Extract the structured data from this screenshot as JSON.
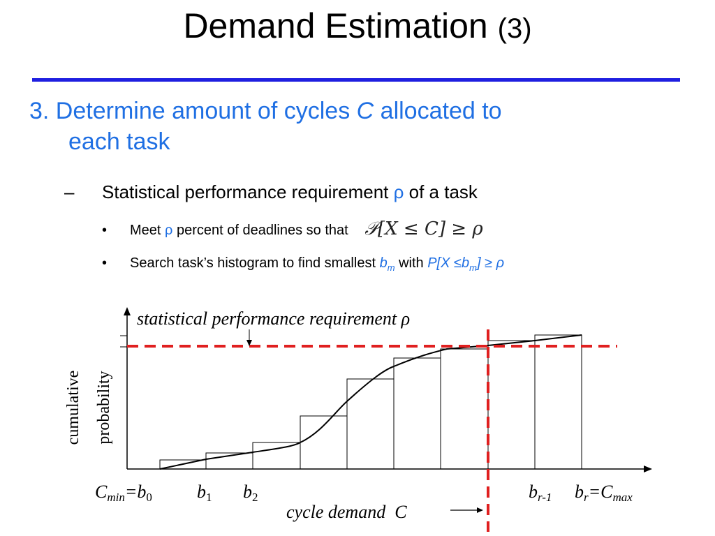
{
  "slide": {
    "title": "Demand Estimation",
    "title_suffix": "(3)",
    "heading_prefix": "3. Determine amount of cycles ",
    "heading_var": "C",
    "heading_rest": " allocated to",
    "heading_line2": "each task",
    "dash": "–",
    "sub_text": "Statistical performance requirement ",
    "sub_rho": "ρ",
    "sub_end": " of a task",
    "bullet_symbol": "•",
    "b1_pre": "Meet ",
    "b1_rho": "ρ",
    "b1_post": " percent of deadlines so that",
    "b1_formula": "𝒫[X ≤ C] ≥ ρ",
    "b2_pre": "Search task’s histogram to find smallest ",
    "b2_b": "b",
    "b2_m": "m",
    "b2_with": " with ",
    "b2_formula_pre": "P[X ≤b",
    "b2_formula_sub": "m",
    "b2_formula_post": "] ≥ ρ"
  },
  "diagram": {
    "requirement_label": "statistical performance requirement ρ",
    "ylabel_line1": "cumulative",
    "ylabel_line2": "probability",
    "xlabel": "cycle demand  C",
    "tick_cmin": "C",
    "tick_cmin_sub": "min",
    "tick_b0_eq": "=b",
    "tick_b0_sub": "0",
    "tick_b1": "b",
    "tick_b1_sub": "1",
    "tick_b2": "b",
    "tick_b2_sub": "2",
    "tick_br1": "b",
    "tick_br1_sub": "r-1",
    "tick_br": "b",
    "tick_br_sub": "r",
    "tick_cmax_eq": "=C",
    "tick_cmax_sub": "max",
    "line_color": "#000000",
    "requirement_line_color": "#e02020",
    "accent_blue": "#1f6fe3"
  }
}
